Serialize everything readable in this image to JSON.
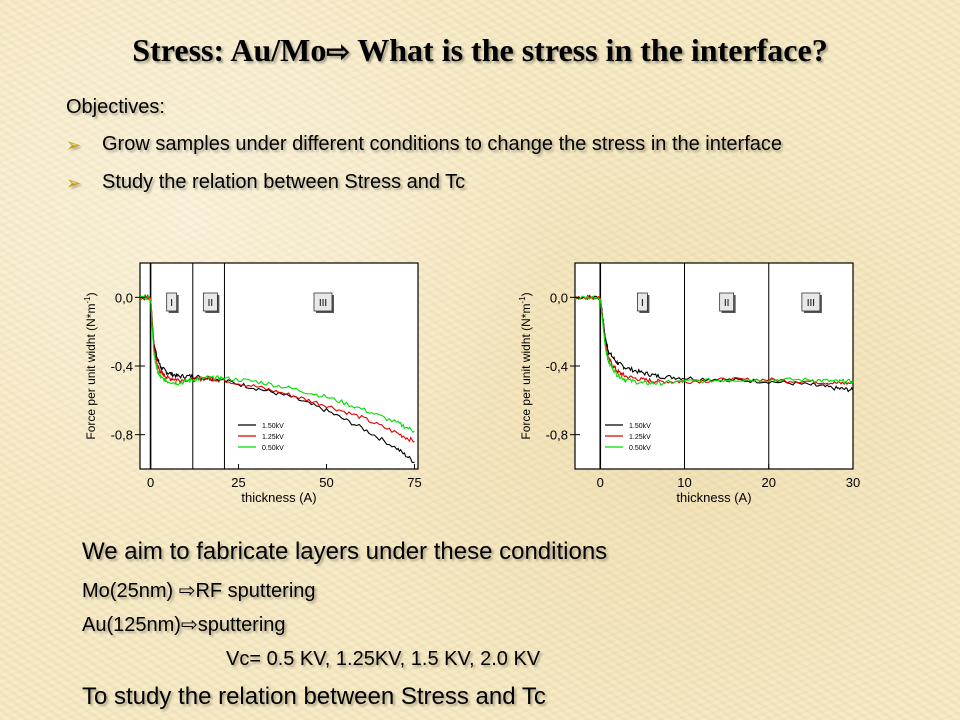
{
  "slide": {
    "title_prefix": "Stress: Au/Mo",
    "title_suffix": " What is the stress in the interface?",
    "objectives_heading": "Objectives:",
    "bullets": [
      " Grow samples under different conditions to change the stress in the interface",
      "Study the relation between Stress and Tc"
    ],
    "aim_line": "We aim to fabricate layers under these conditions",
    "mo_label": "Mo(25nm) ",
    "mo_method": "RF sputtering",
    "au_label": "Au(125nm)",
    "au_method": "sputtering",
    "vc_line": "Vc= 0.5 KV, 1.25KV, 1.5 KV, 2.0 KV",
    "study_line": "To study the relation between Stress and Tc"
  },
  "colors": {
    "s150": "#000000",
    "s125": "#e00000",
    "s050": "#00dd00",
    "bullet": "#c9a000"
  },
  "chart_data": [
    {
      "type": "line",
      "xlabel": "thickness (A)",
      "ylabel": "Force per unit widht (N*m",
      "ylabel_sup": "-1",
      "ylabel_close": ")",
      "xlim": [
        -3,
        76
      ],
      "ylim": [
        -1.0,
        0.2
      ],
      "xticks": [
        0,
        25,
        50,
        75
      ],
      "xtick_labels": [
        "0",
        "25",
        "50",
        "75"
      ],
      "yticks": [
        0.0,
        -0.4,
        -0.8
      ],
      "ytick_labels": [
        "0,0",
        "-0,4",
        "-0,8"
      ],
      "regions": [
        {
          "label": "I",
          "x": 6
        },
        {
          "label": "II",
          "x": 17
        },
        {
          "label": "III",
          "x": 49
        }
      ],
      "region_lines": [
        0,
        12,
        21
      ],
      "legend_position": "lower-center",
      "series": [
        {
          "name": "1.50kV",
          "x": [
            -3,
            0,
            0.5,
            1,
            2,
            3,
            5,
            8,
            12,
            16,
            20,
            30,
            40,
            50,
            60,
            70,
            75
          ],
          "y": [
            0.0,
            0.0,
            -0.15,
            -0.28,
            -0.36,
            -0.41,
            -0.44,
            -0.46,
            -0.46,
            -0.47,
            -0.48,
            -0.53,
            -0.58,
            -0.66,
            -0.76,
            -0.88,
            -0.96
          ]
        },
        {
          "name": "1.25kV",
          "x": [
            -3,
            0,
            0.5,
            1,
            2,
            3,
            5,
            8,
            12,
            16,
            20,
            30,
            40,
            50,
            60,
            70,
            75
          ],
          "y": [
            0.0,
            0.0,
            -0.16,
            -0.3,
            -0.4,
            -0.44,
            -0.47,
            -0.48,
            -0.48,
            -0.47,
            -0.48,
            -0.52,
            -0.57,
            -0.63,
            -0.7,
            -0.79,
            -0.84
          ]
        },
        {
          "name": "0.50kV",
          "x": [
            -3,
            0,
            0.5,
            1,
            2,
            3,
            5,
            8,
            12,
            16,
            20,
            30,
            40,
            50,
            60,
            70,
            75
          ],
          "y": [
            0.0,
            0.0,
            -0.18,
            -0.34,
            -0.43,
            -0.47,
            -0.49,
            -0.5,
            -0.48,
            -0.47,
            -0.47,
            -0.49,
            -0.53,
            -0.58,
            -0.65,
            -0.73,
            -0.78
          ]
        }
      ]
    },
    {
      "type": "line",
      "xlabel": "thickness (A)",
      "ylabel": "Force per unit widht (N*m",
      "ylabel_sup": "-1",
      "ylabel_close": ")",
      "xlim": [
        -3,
        30
      ],
      "ylim": [
        -1.0,
        0.2
      ],
      "xticks": [
        0,
        10,
        20,
        30
      ],
      "xtick_labels": [
        "0",
        "10",
        "20",
        "30"
      ],
      "yticks": [
        0.0,
        -0.4,
        -0.8
      ],
      "ytick_labels": [
        "0,0",
        "-0,4",
        "-0,8"
      ],
      "regions": [
        {
          "label": "I",
          "x": 5
        },
        {
          "label": "II",
          "x": 15
        },
        {
          "label": "III",
          "x": 25
        }
      ],
      "region_lines": [
        0,
        10,
        20
      ],
      "legend_position": "lower-left",
      "series": [
        {
          "name": "1.50kV",
          "x": [
            -3,
            0,
            0.3,
            0.6,
            1,
            2,
            3,
            5,
            7,
            10,
            15,
            20,
            25,
            28,
            30
          ],
          "y": [
            0.0,
            0.0,
            -0.12,
            -0.24,
            -0.32,
            -0.38,
            -0.41,
            -0.44,
            -0.46,
            -0.47,
            -0.48,
            -0.49,
            -0.51,
            -0.53,
            -0.54
          ]
        },
        {
          "name": "1.25kV",
          "x": [
            -3,
            0,
            0.3,
            0.6,
            1,
            2,
            3,
            5,
            7,
            10,
            15,
            20,
            25,
            28,
            30
          ],
          "y": [
            0.0,
            0.0,
            -0.14,
            -0.27,
            -0.36,
            -0.43,
            -0.46,
            -0.48,
            -0.49,
            -0.49,
            -0.48,
            -0.48,
            -0.49,
            -0.5,
            -0.5
          ]
        },
        {
          "name": "0.50kV",
          "x": [
            -3,
            0,
            0.3,
            0.6,
            1,
            2,
            3,
            5,
            7,
            10,
            15,
            20,
            25,
            28,
            30
          ],
          "y": [
            0.0,
            0.0,
            -0.15,
            -0.29,
            -0.38,
            -0.45,
            -0.48,
            -0.5,
            -0.5,
            -0.49,
            -0.48,
            -0.48,
            -0.48,
            -0.49,
            -0.49
          ]
        }
      ]
    }
  ]
}
